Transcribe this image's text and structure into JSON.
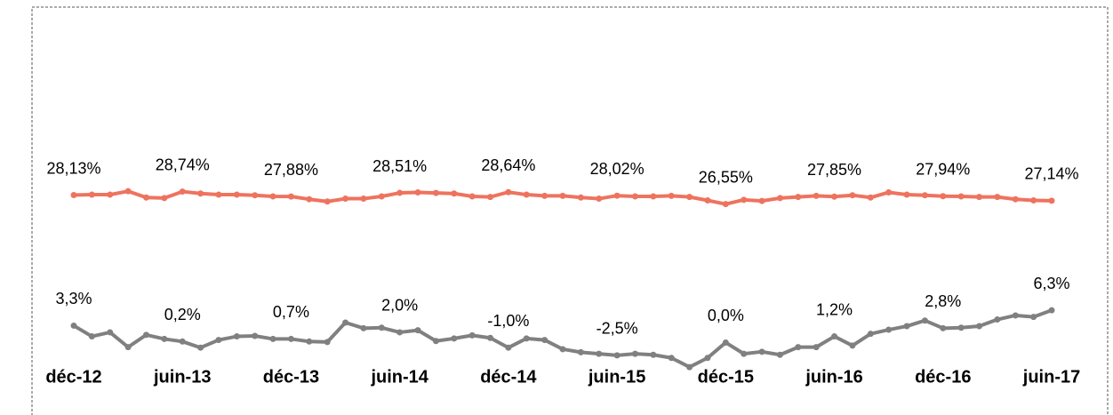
{
  "chart_data": {
    "type": "line",
    "categories": [
      "déc-12",
      null,
      null,
      null,
      null,
      null,
      "juin-13",
      null,
      null,
      null,
      null,
      null,
      "déc-13",
      null,
      null,
      null,
      null,
      null,
      "juin-14",
      null,
      null,
      null,
      null,
      null,
      "déc-14",
      null,
      null,
      null,
      null,
      null,
      "juin-15",
      null,
      null,
      null,
      null,
      null,
      "déc-15",
      null,
      null,
      null,
      null,
      null,
      "juin-16",
      null,
      null,
      null,
      null,
      null,
      "déc-16",
      null,
      null,
      null,
      null,
      null,
      "juin-17"
    ],
    "ylim": [
      -3,
      56
    ],
    "y2lim": [
      -6,
      60
    ],
    "series": [
      {
        "name": null,
        "color": "#ee735f",
        "values": [
          28.13,
          28.2,
          28.2,
          28.8,
          27.7,
          27.6,
          28.74,
          28.4,
          28.2,
          28.2,
          28.1,
          27.9,
          27.88,
          27.4,
          27.0,
          27.5,
          27.5,
          27.9,
          28.51,
          28.6,
          28.5,
          28.4,
          27.9,
          27.8,
          28.64,
          28.2,
          28.0,
          28.0,
          27.7,
          27.5,
          28.02,
          27.9,
          27.9,
          28.0,
          27.8,
          27.2,
          26.55,
          27.3,
          27.1,
          27.6,
          27.8,
          28.0,
          27.85,
          28.1,
          27.7,
          28.6,
          28.2,
          28.1,
          27.94,
          27.9,
          27.8,
          27.8,
          27.4,
          27.2,
          27.14
        ],
        "value_labels": [
          "28,13%",
          null,
          null,
          null,
          null,
          null,
          "28,74%",
          null,
          null,
          null,
          null,
          null,
          "27,88%",
          null,
          null,
          null,
          null,
          null,
          "28,51%",
          null,
          null,
          null,
          null,
          null,
          "28,64%",
          null,
          null,
          null,
          null,
          null,
          "28,02%",
          null,
          null,
          null,
          null,
          null,
          "26,55%",
          null,
          null,
          null,
          null,
          null,
          "27,85%",
          null,
          null,
          null,
          null,
          null,
          "27,94%",
          null,
          null,
          null,
          null,
          null,
          "27,14%"
        ]
      },
      {
        "name": null,
        "color": "#808080",
        "axis": "y2",
        "values": [
          3.3,
          1.2,
          2.0,
          -0.9,
          1.5,
          0.7,
          0.2,
          -1.0,
          0.5,
          1.2,
          1.3,
          0.7,
          0.7,
          0.2,
          0.1,
          3.9,
          2.8,
          2.9,
          2.0,
          2.4,
          0.3,
          0.8,
          1.4,
          0.9,
          -1.0,
          0.8,
          0.5,
          -1.3,
          -1.9,
          -2.2,
          -2.5,
          -2.2,
          -2.4,
          -3.0,
          -4.8,
          -3.0,
          0.0,
          -2.2,
          -1.8,
          -2.4,
          -0.9,
          -0.9,
          1.2,
          -0.6,
          1.7,
          2.5,
          3.2,
          4.3,
          2.8,
          2.9,
          3.2,
          4.5,
          5.3,
          5.0,
          6.3
        ],
        "value_labels": [
          "3,3%",
          null,
          null,
          null,
          null,
          null,
          "0,2%",
          null,
          null,
          null,
          null,
          null,
          "0,7%",
          null,
          null,
          null,
          null,
          null,
          "2,0%",
          null,
          null,
          null,
          null,
          null,
          "-1,0%",
          null,
          null,
          null,
          null,
          null,
          "-2,5%",
          null,
          null,
          null,
          null,
          null,
          "0,0%",
          null,
          null,
          null,
          null,
          null,
          "1,2%",
          null,
          null,
          null,
          null,
          null,
          "2,8%",
          null,
          null,
          null,
          null,
          null,
          "6,3%"
        ]
      }
    ]
  }
}
